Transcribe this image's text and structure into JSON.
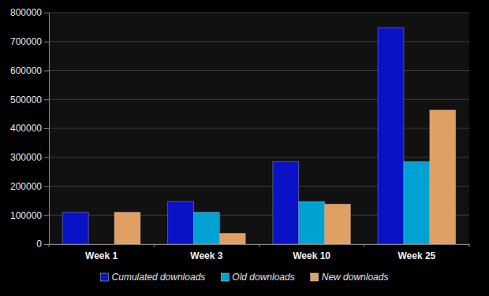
{
  "chart_data": {
    "type": "bar",
    "categories": [
      "Week 1",
      "Week 3",
      "Week 10",
      "Week 25"
    ],
    "series": [
      {
        "name": "Cumulated downloads",
        "color": "#0a12c8",
        "values": [
          110000,
          147000,
          285000,
          748000
        ]
      },
      {
        "name": "Old downloads",
        "color": "#00a2d4",
        "values": [
          0,
          110000,
          147000,
          285000
        ]
      },
      {
        "name": "New downloads",
        "color": "#e0a064",
        "values": [
          110000,
          37000,
          138000,
          463000
        ]
      }
    ],
    "ylim": [
      0,
      800000
    ],
    "yticks": [
      0,
      100000,
      200000,
      300000,
      400000,
      500000,
      600000,
      700000,
      800000
    ],
    "grid": true,
    "legend": "bottom"
  }
}
